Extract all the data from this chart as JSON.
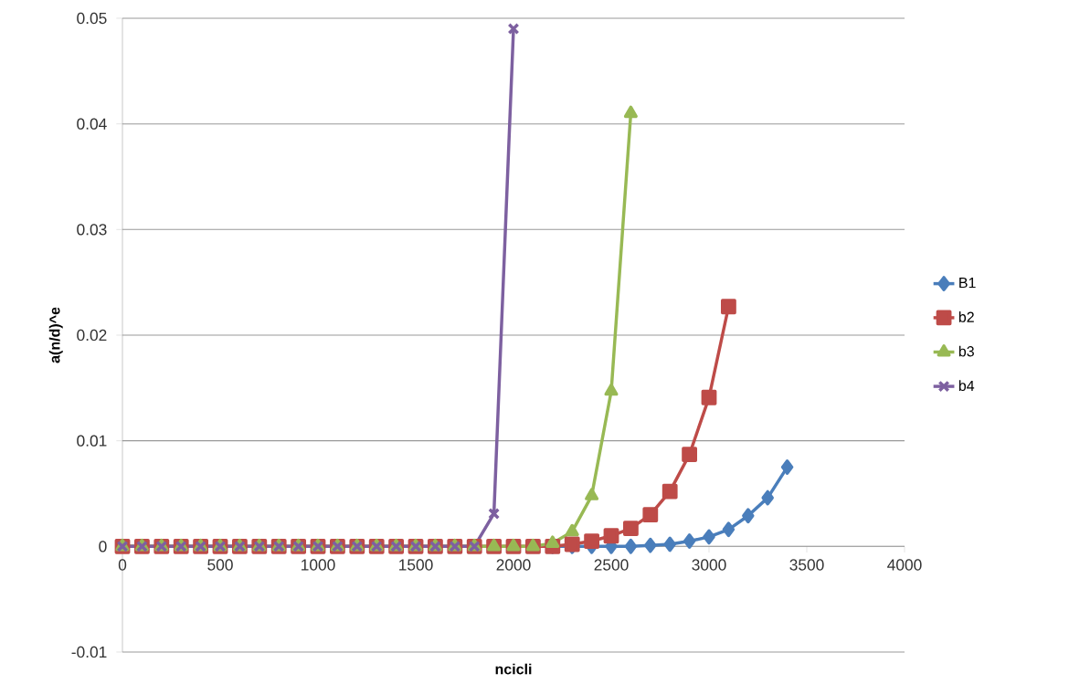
{
  "chart_data": {
    "type": "line",
    "xlabel": "ncicli",
    "ylabel": "a(n/d)^e",
    "series": [
      {
        "name": "B1",
        "color": "#4a7ebb",
        "marker": "diamond",
        "x": [
          2200,
          2300,
          2400,
          2500,
          2600,
          2700,
          2800,
          2900,
          3000,
          3100,
          3200,
          3300,
          3400
        ],
        "values": [
          0,
          0,
          0,
          0,
          0,
          0.0001,
          0.0002,
          0.0005,
          0.0009,
          0.0016,
          0.0029,
          0.0046,
          0.0075
        ]
      },
      {
        "name": "b2",
        "color": "#be4b48",
        "marker": "square",
        "x": [
          0,
          100,
          200,
          300,
          400,
          500,
          600,
          700,
          800,
          900,
          1000,
          1100,
          1200,
          1300,
          1400,
          1500,
          1600,
          1700,
          1800,
          1900,
          2000,
          2100,
          2200,
          2300,
          2400,
          2500,
          2600,
          2700,
          2800,
          2900,
          3000,
          3100
        ],
        "values": [
          0,
          0,
          0,
          0,
          0,
          0,
          0,
          0,
          0,
          0,
          0,
          0,
          0,
          0,
          0,
          0,
          0,
          0,
          0,
          0,
          0,
          0,
          0,
          0.0002,
          0.0005,
          0.001,
          0.0017,
          0.003,
          0.0052,
          0.0087,
          0.0141,
          0.0227
        ]
      },
      {
        "name": "b3",
        "color": "#98b954",
        "marker": "triangle",
        "x": [
          0,
          100,
          200,
          300,
          400,
          500,
          600,
          700,
          800,
          900,
          1000,
          1100,
          1200,
          1300,
          1400,
          1500,
          1600,
          1700,
          1800,
          1900,
          2000,
          2100,
          2200,
          2300,
          2400,
          2500,
          2600
        ],
        "values": [
          0,
          0,
          0,
          0,
          0,
          0,
          0,
          0,
          0,
          0,
          0,
          0,
          0,
          0,
          0,
          0,
          0,
          0,
          0,
          0,
          0,
          0,
          0.0003,
          0.0014,
          0.0048,
          0.0147,
          0.041
        ]
      },
      {
        "name": "b4",
        "color": "#7d60a0",
        "marker": "cross",
        "x": [
          0,
          100,
          200,
          300,
          400,
          500,
          600,
          700,
          800,
          900,
          1000,
          1100,
          1200,
          1300,
          1400,
          1500,
          1600,
          1700,
          1800,
          1900,
          2000
        ],
        "values": [
          0,
          0,
          0,
          0,
          0,
          0,
          0,
          0,
          0,
          0,
          0,
          0,
          0,
          0,
          0,
          0,
          0,
          0,
          0,
          0.0031,
          0.049
        ]
      }
    ],
    "xlim": [
      0,
      4000
    ],
    "xticks": [
      0,
      500,
      1000,
      1500,
      2000,
      2500,
      3000,
      3500,
      4000
    ],
    "ylim": [
      -0.01,
      0.05
    ],
    "yticks": [
      -0.01,
      0,
      0.01,
      0.02,
      0.03,
      0.04,
      0.05
    ],
    "grid": "y",
    "legend": "right",
    "line_style": "solid"
  }
}
